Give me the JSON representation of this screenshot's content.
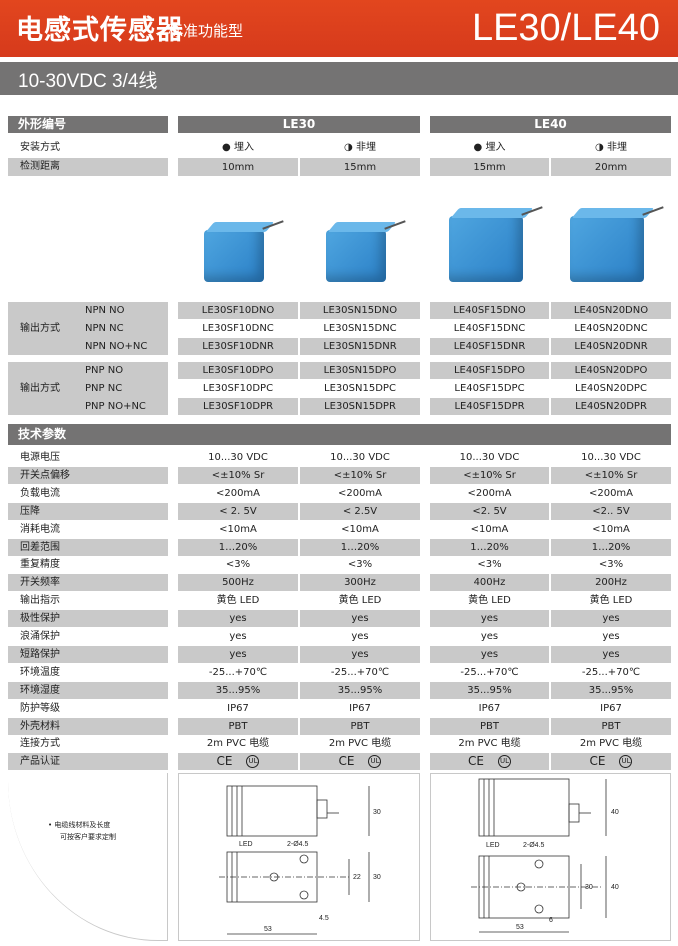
{
  "header": {
    "title": "电感式传感器",
    "subtitle": "标准功能型",
    "model": "LE30/LE40",
    "brand_color": "#d93d1c"
  },
  "band": {
    "text": "10-30VDC 3/4线"
  },
  "shape": {
    "label": "外形编号",
    "groups": [
      "LE30",
      "LE40"
    ]
  },
  "mount": {
    "label": "安装方式",
    "values": [
      "● 埋入",
      "◑ 非埋",
      "● 埋入",
      "◑ 非埋"
    ]
  },
  "distance": {
    "label": "检测距离",
    "values": [
      "10mm",
      "15mm",
      "15mm",
      "20mm"
    ]
  },
  "npn": {
    "label": "输出方式",
    "types": [
      "NPN NO",
      "NPN NC",
      "NPN NO+NC"
    ],
    "models": [
      [
        "LE30SF10DNO",
        "LE30SN15DNO",
        "LE40SF15DNO",
        "LE40SN20DNO"
      ],
      [
        "LE30SF10DNC",
        "LE30SN15DNC",
        "LE40SF15DNC",
        "LE40SN20DNC"
      ],
      [
        "LE30SF10DNR",
        "LE30SN15DNR",
        "LE40SF15DNR",
        "LE40SN20DNR"
      ]
    ]
  },
  "pnp": {
    "label": "输出方式",
    "types": [
      "PNP NO",
      "PNP NC",
      "PNP NO+NC"
    ],
    "models": [
      [
        "LE30SF10DPO",
        "LE30SN15DPO",
        "LE40SF15DPO",
        "LE40SN20DPO"
      ],
      [
        "LE30SF10DPC",
        "LE30SN15DPC",
        "LE40SF15DPC",
        "LE40SN20DPC"
      ],
      [
        "LE30SF10DPR",
        "LE30SN15DPR",
        "LE40SF15DPR",
        "LE40SN20DPR"
      ]
    ]
  },
  "specs": {
    "title": "技术参数",
    "rows": [
      {
        "label": "电源电压",
        "values": [
          "10...30 VDC",
          "10...30 VDC",
          "10...30 VDC",
          "10...30 VDC"
        ]
      },
      {
        "label": "开关点偏移",
        "values": [
          "<±10% Sr",
          "<±10% Sr",
          "<±10% Sr",
          "<±10% Sr"
        ]
      },
      {
        "label": "负载电流",
        "values": [
          "<200mA",
          "<200mA",
          "<200mA",
          "<200mA"
        ]
      },
      {
        "label": "压降",
        "values": [
          "< 2. 5V",
          "< 2.5V",
          "<2. 5V",
          "<2.. 5V"
        ]
      },
      {
        "label": "消耗电流",
        "values": [
          "<10mA",
          "<10mA",
          "<10mA",
          "<10mA"
        ]
      },
      {
        "label": "回差范围",
        "values": [
          "1…20%",
          "1…20%",
          "1…20%",
          "1…20%"
        ]
      },
      {
        "label": "重复精度",
        "values": [
          "<3%",
          "<3%",
          "<3%",
          "<3%"
        ]
      },
      {
        "label": "开关频率",
        "values": [
          "500Hz",
          "300Hz",
          "400Hz",
          "200Hz"
        ]
      },
      {
        "label": "输出指示",
        "values": [
          "黄色  LED",
          "黄色  LED",
          "黄色  LED",
          "黄色  LED"
        ]
      },
      {
        "label": "极性保护",
        "values": [
          "yes",
          "yes",
          "yes",
          "yes"
        ]
      },
      {
        "label": "浪涌保护",
        "values": [
          "yes",
          "yes",
          "yes",
          "yes"
        ]
      },
      {
        "label": "短路保护",
        "values": [
          "yes",
          "yes",
          "yes",
          "yes"
        ]
      },
      {
        "label": "环境温度",
        "values": [
          "-25...+70℃",
          "-25...+70℃",
          "-25...+70℃",
          "-25...+70℃"
        ]
      },
      {
        "label": "环境湿度",
        "values": [
          "35...95%",
          "35...95%",
          "35...95%",
          "35...95%"
        ]
      },
      {
        "label": "防护等级",
        "values": [
          "IP67",
          "IP67",
          "IP67",
          "IP67"
        ]
      },
      {
        "label": "外壳材料",
        "values": [
          "PBT",
          "PBT",
          "PBT",
          "PBT"
        ]
      },
      {
        "label": "连接方式",
        "values": [
          "2m PVC 电缆",
          "2m PVC 电缆",
          "2m PVC 电缆",
          "2m PVC 电缆"
        ]
      },
      {
        "label": "产品认证",
        "values": [
          "CE  UL",
          "CE  UL",
          "CE  UL",
          "CE  UL"
        ]
      }
    ]
  },
  "note": {
    "line1": "• 电缆线材料及长度",
    "line2": "可按客户要求定制"
  },
  "drawings": [
    {
      "led": "LED",
      "holes": "2-Ø4.5",
      "h1": "30",
      "h2": "22",
      "h3": "30",
      "w": "53",
      "off": "4.5"
    },
    {
      "led": "LED",
      "holes": "2-Ø4.5",
      "h1": "40",
      "h2": "30",
      "h3": "40",
      "w": "53",
      "off": "6"
    }
  ]
}
